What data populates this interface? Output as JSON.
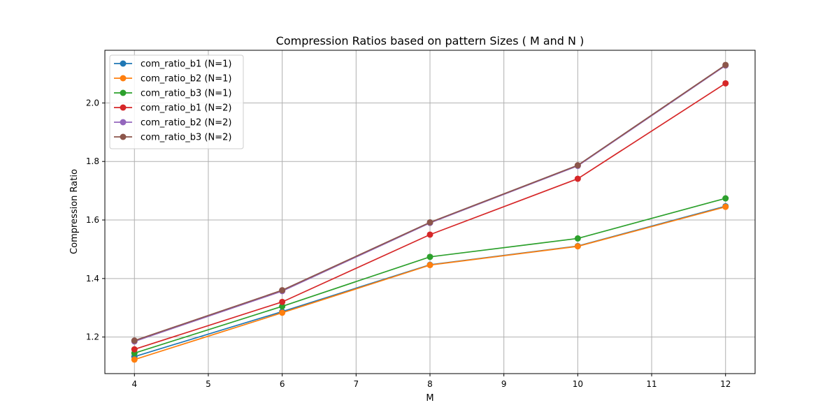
{
  "chart_data": {
    "type": "line",
    "title": "Compression Ratios based on  pattern Sizes ( M and N )",
    "xlabel": "M",
    "ylabel": "Compression Ratio",
    "x": [
      4,
      6,
      8,
      10,
      12
    ],
    "xlim": [
      3.6,
      12.4
    ],
    "ylim": [
      1.075,
      2.18
    ],
    "xticks": [
      4,
      5,
      6,
      7,
      8,
      9,
      10,
      11,
      12
    ],
    "xtick_labels": [
      "4",
      "5",
      "6",
      "7",
      "8",
      "9",
      "10",
      "11",
      "12"
    ],
    "yticks": [
      1.2,
      1.4,
      1.6,
      1.8,
      2.0
    ],
    "ytick_labels": [
      "1.2",
      "1.4",
      "1.6",
      "1.8",
      "2.0"
    ],
    "grid": true,
    "legend_position": "top-left",
    "series": [
      {
        "name": "com_ratio_b1 (N=1)",
        "color": "#1f77b4",
        "values": [
          1.133,
          1.287,
          1.447,
          1.511,
          1.647
        ]
      },
      {
        "name": "com_ratio_b2 (N=1)",
        "color": "#ff7f0e",
        "values": [
          1.123,
          1.283,
          1.446,
          1.51,
          1.645
        ]
      },
      {
        "name": "com_ratio_b3 (N=1)",
        "color": "#2ca02c",
        "values": [
          1.145,
          1.305,
          1.474,
          1.537,
          1.674
        ]
      },
      {
        "name": "com_ratio_b1 (N=2)",
        "color": "#d62728",
        "values": [
          1.158,
          1.32,
          1.55,
          1.741,
          2.067
        ]
      },
      {
        "name": "com_ratio_b2 (N=2)",
        "color": "#9467bd",
        "values": [
          1.185,
          1.357,
          1.59,
          1.785,
          2.128
        ]
      },
      {
        "name": "com_ratio_b3 (N=2)",
        "color": "#8c564b",
        "values": [
          1.188,
          1.36,
          1.592,
          1.787,
          2.13
        ]
      }
    ]
  }
}
